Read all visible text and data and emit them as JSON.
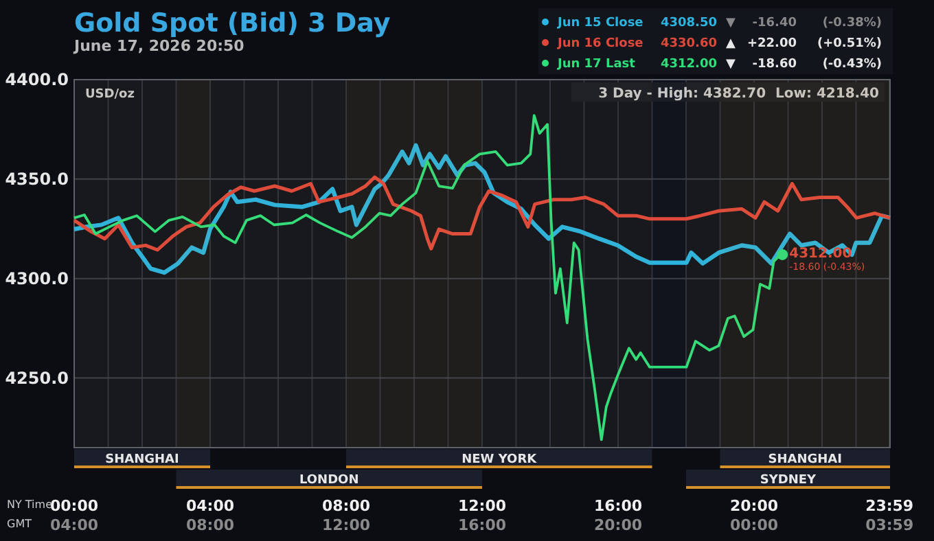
{
  "chart_data": {
    "type": "line",
    "title": "Gold Spot (Bid) 3 Day",
    "subtitle": "June 17, 2026 20:50",
    "ylabel": "USD/oz",
    "xlabel": "NY Time",
    "x2label": "GMT",
    "xlim": [
      0,
      24
    ],
    "xticks": [
      {
        "value": 0,
        "label": "00:00"
      },
      {
        "value": 1,
        "label": null
      },
      {
        "value": 2,
        "label": null
      },
      {
        "value": 3,
        "label": null
      },
      {
        "value": 4,
        "label": "04:00"
      },
      {
        "value": 5,
        "label": null
      },
      {
        "value": 6,
        "label": null
      },
      {
        "value": 7,
        "label": null
      },
      {
        "value": 8,
        "label": "08:00"
      },
      {
        "value": 9,
        "label": null
      },
      {
        "value": 10,
        "label": null
      },
      {
        "value": 11,
        "label": null
      },
      {
        "value": 12,
        "label": "12:00"
      },
      {
        "value": 13,
        "label": null
      },
      {
        "value": 14,
        "label": null
      },
      {
        "value": 15,
        "label": null
      },
      {
        "value": 16,
        "label": "16:00"
      },
      {
        "value": 17,
        "label": null
      },
      {
        "value": 18,
        "label": null
      },
      {
        "value": 19,
        "label": null
      },
      {
        "value": 20,
        "label": "20:00"
      },
      {
        "value": 21,
        "label": null
      },
      {
        "value": 22,
        "label": null
      },
      {
        "value": 23,
        "label": null
      },
      {
        "value": 23.983,
        "label": "23:59"
      }
    ],
    "x2lim": [
      "2026-06-17T04:00",
      "2026-06-18T04:00"
    ],
    "x2ticks": [
      {
        "value": "2026-06-17T04:00",
        "label": "04:00"
      },
      {
        "value": "2026-06-17T08:00",
        "label": "08:00"
      },
      {
        "value": "2026-06-17T12:00",
        "label": "12:00"
      },
      {
        "value": "2026-06-17T16:00",
        "label": "16:00"
      },
      {
        "value": "2026-06-17T20:00",
        "label": "20:00"
      },
      {
        "value": "2026-06-18T00:00",
        "label": "00:00"
      },
      {
        "value": "2026-06-18T03:59",
        "label": "03:59"
      }
    ],
    "ylim": [
      4215,
      4400
    ],
    "yticks": [
      {
        "value": 4250,
        "label": "4250.0"
      },
      {
        "value": 4300,
        "label": "4300.0"
      },
      {
        "value": 4350,
        "label": "4350.0"
      },
      {
        "value": 4400,
        "label": "4400.0"
      }
    ],
    "grid": true,
    "legend": "top right",
    "line_style": "solid",
    "series": [
      {
        "name": "Jun 15 Close",
        "color": "#2bb5e0",
        "x": [
          0,
          0.36,
          0.8,
          1.3,
          1.7,
          2.0,
          2.25,
          2.65,
          3.05,
          3.46,
          3.8,
          4.0,
          4.4,
          4.6,
          4.8,
          5.34,
          5.9,
          6.7,
          7.2,
          7.6,
          7.83,
          8.17,
          8.3,
          8.57,
          8.84,
          9.04,
          9.25,
          9.65,
          9.85,
          10.05,
          10.26,
          10.46,
          10.73,
          10.93,
          11.27,
          11.5,
          11.8,
          12.07,
          12.34,
          12.74,
          13.15,
          13.55,
          13.96,
          14.36,
          14.9,
          15.45,
          15.99,
          16.53,
          16.93,
          18.01,
          18.15,
          18.49,
          18.96,
          19.64,
          20.04,
          20.51,
          21.05,
          21.39,
          21.8,
          22.2,
          22.6,
          22.88,
          23.0,
          23.4,
          23.76,
          24.0
        ],
        "values": [
          4324.8,
          4326,
          4327,
          4330.5,
          4318,
          4311,
          4305,
          4303,
          4307.5,
          4315.6,
          4313,
          4325,
          4336,
          4343.6,
          4338.5,
          4339.7,
          4337,
          4336,
          4338.5,
          4345,
          4334,
          4336,
          4327,
          4336,
          4345,
          4347.7,
          4352,
          4363.8,
          4358,
          4367,
          4357,
          4362.6,
          4355.7,
          4361.5,
          4352,
          4357,
          4358,
          4353.4,
          4343,
          4338.5,
          4335,
          4327,
          4320,
          4326,
          4323.6,
          4320,
          4316.7,
          4311,
          4308,
          4308,
          4313,
          4307.6,
          4313,
          4316.7,
          4315.6,
          4307.6,
          4322.5,
          4316.7,
          4318,
          4313,
          4316.7,
          4312,
          4318,
          4318,
          4331.6,
          4330.5
        ]
      },
      {
        "name": "Jun 16 Close",
        "color": "#e0483c",
        "x": [
          0,
          0.5,
          0.9,
          1.3,
          1.7,
          2.1,
          2.45,
          2.9,
          3.3,
          3.7,
          4.1,
          4.5,
          4.9,
          5.3,
          5.9,
          6.4,
          6.96,
          7.2,
          7.77,
          8.17,
          8.57,
          8.84,
          9.1,
          9.38,
          9.92,
          10.19,
          10.39,
          10.5,
          10.73,
          11.13,
          11.66,
          11.93,
          12.2,
          12.6,
          13.0,
          13.35,
          13.55,
          14.1,
          14.63,
          15.04,
          15.58,
          15.99,
          16.53,
          16.93,
          18.01,
          18.42,
          18.96,
          19.64,
          20.04,
          20.3,
          20.7,
          21.12,
          21.39,
          21.93,
          22.47,
          22.74,
          23.01,
          23.55,
          24.0
        ],
        "values": [
          4329.3,
          4323.6,
          4320,
          4327,
          4315.6,
          4316.7,
          4314.4,
          4321.3,
          4326,
          4328,
          4336,
          4342,
          4345.9,
          4344,
          4346.5,
          4344,
          4347.7,
          4338.5,
          4340.8,
          4342.6,
          4346.5,
          4351,
          4347.7,
          4337.4,
          4334,
          4331.6,
          4320,
          4315,
          4324.8,
          4322.5,
          4322.5,
          4336,
          4344,
          4341.7,
          4338.5,
          4326,
          4337.4,
          4339.7,
          4339.7,
          4340.8,
          4337.4,
          4331.6,
          4331.6,
          4330,
          4330,
          4331.6,
          4334,
          4335,
          4330.5,
          4338.5,
          4334,
          4347.7,
          4339.7,
          4340.8,
          4340.8,
          4336,
          4330.5,
          4332.8,
          4330.5
        ]
      },
      {
        "name": "Jun 17 Last",
        "color": "#2ee07c",
        "x": [
          0,
          0.3,
          0.63,
          1.04,
          1.44,
          1.84,
          2.38,
          2.79,
          3.19,
          3.73,
          4.13,
          4.4,
          4.74,
          5.07,
          5.48,
          5.88,
          6.42,
          6.82,
          7.23,
          7.77,
          8.17,
          8.57,
          8.98,
          9.31,
          9.65,
          10.05,
          10.39,
          10.73,
          11.13,
          11.47,
          11.93,
          12.4,
          12.74,
          13.15,
          13.42,
          13.53,
          13.69,
          13.92,
          14.03,
          14.16,
          14.3,
          14.5,
          14.7,
          14.84,
          15.1,
          15.31,
          15.51,
          15.65,
          15.78,
          15.99,
          16.32,
          16.53,
          16.66,
          16.93,
          18.01,
          18.28,
          18.69,
          18.96,
          19.23,
          19.43,
          19.7,
          19.97,
          20.18,
          20.45,
          20.58,
          20.78,
          20.833
        ],
        "values": [
          4330.5,
          4332,
          4322.5,
          4326,
          4329.3,
          4331.6,
          4323.6,
          4329.3,
          4331,
          4326,
          4327,
          4321.3,
          4318,
          4329.3,
          4331.6,
          4327,
          4328,
          4332,
          4328,
          4323.6,
          4320.6,
          4326,
          4332.8,
          4331.6,
          4337.4,
          4343,
          4359,
          4346.5,
          4345.4,
          4357,
          4362.6,
          4363.8,
          4357,
          4358,
          4362.6,
          4382,
          4373,
          4377.5,
          4329.3,
          4292.6,
          4305,
          4277.7,
          4318,
          4314.4,
          4269.7,
          4244.5,
          4219,
          4235.3,
          4242,
          4251.3,
          4265,
          4259.3,
          4262.7,
          4255.5,
          4255.5,
          4268.5,
          4264,
          4266.2,
          4280,
          4281.2,
          4270.8,
          4274.3,
          4297.2,
          4295,
          4308.7,
          4312,
          4312
        ]
      },
      {
        "type": "scatter",
        "color": "#2ee07c",
        "x": [
          20.833
        ],
        "values": [
          4312
        ]
      }
    ],
    "bands": [
      {
        "axis": "x",
        "from": 0,
        "to": 4,
        "label": "SHANGHAI",
        "color": "#d4912a"
      },
      {
        "axis": "x",
        "from": 3,
        "to": 12,
        "label": "LONDON",
        "color": "#d4912a"
      },
      {
        "axis": "x",
        "from": 8,
        "to": 17,
        "label": "NEW YORK",
        "color": "#d4912a"
      },
      {
        "axis": "x",
        "from": 19,
        "to": 24,
        "label": "SHANGHAI",
        "color": "#d4912a"
      },
      {
        "axis": "x",
        "from": 18,
        "to": 24,
        "label": "SYDNEY",
        "color": "#d4912a"
      }
    ],
    "annotations": [
      "4308.50",
      "▼",
      "-16.40",
      "(-0.38%)",
      "4330.60",
      "▲",
      "+22.00",
      "(+0.51%)",
      "4312.00",
      "▼",
      "-18.60",
      "(-0.43%)",
      "3 Day - High: 4382.70  Low: 4218.40",
      {
        "text": "4312.00",
        "x": 20.833,
        "y": 4312
      },
      {
        "text": "-18.60 (-0.43%)",
        "x": 20.833,
        "y": 4312
      }
    ]
  }
}
